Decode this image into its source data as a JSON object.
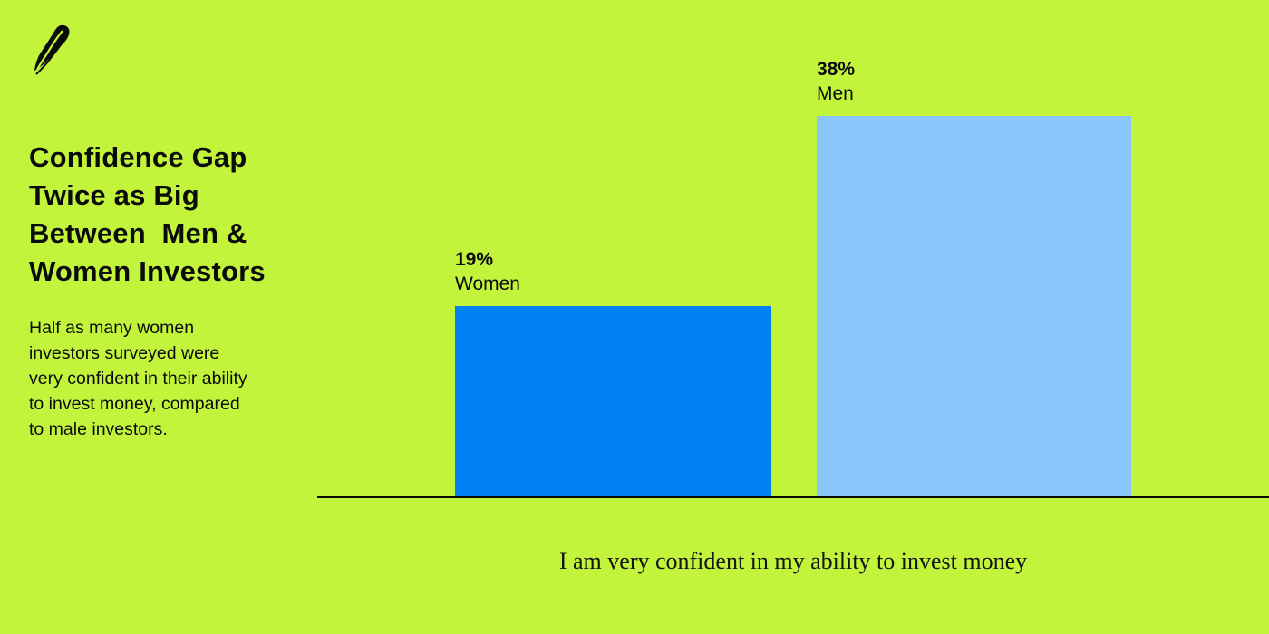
{
  "page": {
    "background_color": "#C3F43C",
    "text_color": "#0B0B0B"
  },
  "brand": {
    "logo": "robinhood-feather-logo",
    "logo_color": "#0B0B0B"
  },
  "header": {
    "title": "Confidence Gap\nTwice as Big\nBetween  Men &\nWomen Investors",
    "subtitle": "Half as many women\ninvestors surveyed were\nvery confident in their ability\nto invest money, compared\nto male investors."
  },
  "chart_data": {
    "type": "bar",
    "categories": [
      "Women",
      "Men"
    ],
    "values": [
      19,
      38
    ],
    "value_labels": [
      "19%",
      "38%"
    ],
    "series_colors": [
      "#0082F2",
      "#8AC5FC"
    ],
    "title": "",
    "xlabel": "I am very confident in my ability to invest money",
    "ylabel": "",
    "ylim": [
      0,
      38
    ],
    "grid": false,
    "legend": "none",
    "axis_line_color": "#0B0B0B"
  }
}
